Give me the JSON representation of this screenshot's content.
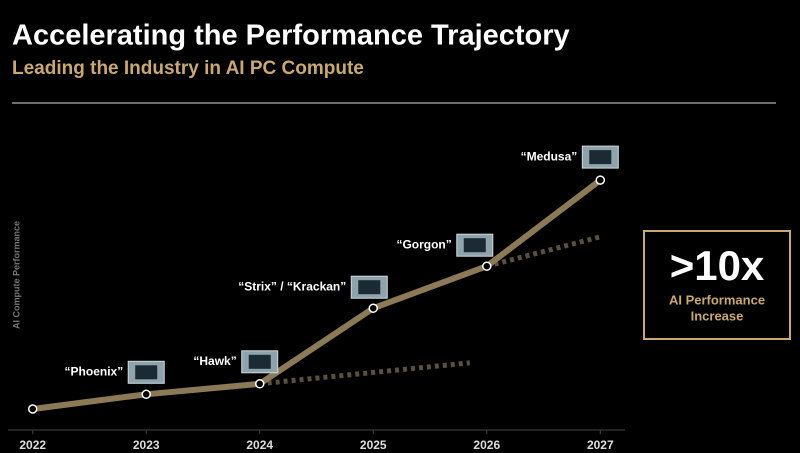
{
  "chart_data": {
    "type": "line",
    "title": "Accelerating the Performance Trajectory",
    "subtitle": "Leading the Industry in AI PC Compute",
    "y_label": "AI Compute Performance",
    "x": [
      2022,
      2023,
      2024,
      2025,
      2026,
      2027
    ],
    "xlim": [
      2021.8,
      2027.2
    ],
    "xticks": [
      2022,
      2023,
      2024,
      2025,
      2026,
      2027
    ],
    "ylim": [
      0,
      15
    ],
    "series": [
      {
        "color": "#8c7a57",
        "values": [
          1,
          1.7,
          2.2,
          5.8,
          7.8,
          11.9
        ]
      }
    ],
    "trend_lines": [
      {
        "color": "#5a513c",
        "x": [
          2024,
          2025.85
        ],
        "values": [
          2.2,
          3.2
        ]
      },
      {
        "color": "#5a513c",
        "x": [
          2026,
          2027
        ],
        "values": [
          7.8,
          9.2
        ]
      }
    ],
    "point_labels": [
      null,
      "“Phoenix”",
      "“Hawk”",
      "“Strix” / “Krackan”",
      "“Gorgon”",
      "“Medusa”"
    ],
    "callout": {
      "headline": ">10x",
      "lines": [
        "AI Performance",
        "Increase"
      ]
    }
  }
}
